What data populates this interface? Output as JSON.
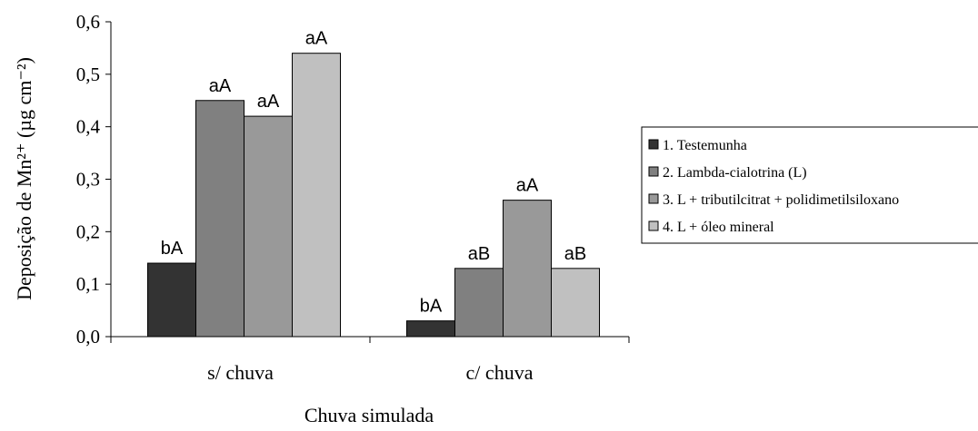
{
  "chart_data": {
    "type": "bar",
    "categories": [
      "s/ chuva",
      "c/ chuva"
    ],
    "series": [
      {
        "name": "1. Testemunha",
        "values": [
          0.14,
          0.03
        ],
        "labels": [
          "bA",
          "bA"
        ],
        "color": "#333333"
      },
      {
        "name": "2. Lambda-cialotrina (L)",
        "values": [
          0.45,
          0.13
        ],
        "labels": [
          "aA",
          "aB"
        ],
        "color": "#808080"
      },
      {
        "name": "3. L + tributilcitrat + polidimetilsiloxano",
        "values": [
          0.42,
          0.26
        ],
        "labels": [
          "aA",
          "aA"
        ],
        "color": "#999999"
      },
      {
        "name": "4. L + óleo mineral",
        "values": [
          0.54,
          0.13
        ],
        "labels": [
          "aA",
          "aB"
        ],
        "color": "#c0c0c0"
      }
    ],
    "xlabel": "Chuva simulada",
    "ylabel": "Deposição de Mn²⁺ (µg cm⁻²)",
    "ylim": [
      0,
      0.6
    ],
    "yticks": [
      "0,0",
      "0,1",
      "0,2",
      "0,3",
      "0,4",
      "0,5",
      "0,6"
    ],
    "grid": false,
    "legend_position": "right"
  }
}
